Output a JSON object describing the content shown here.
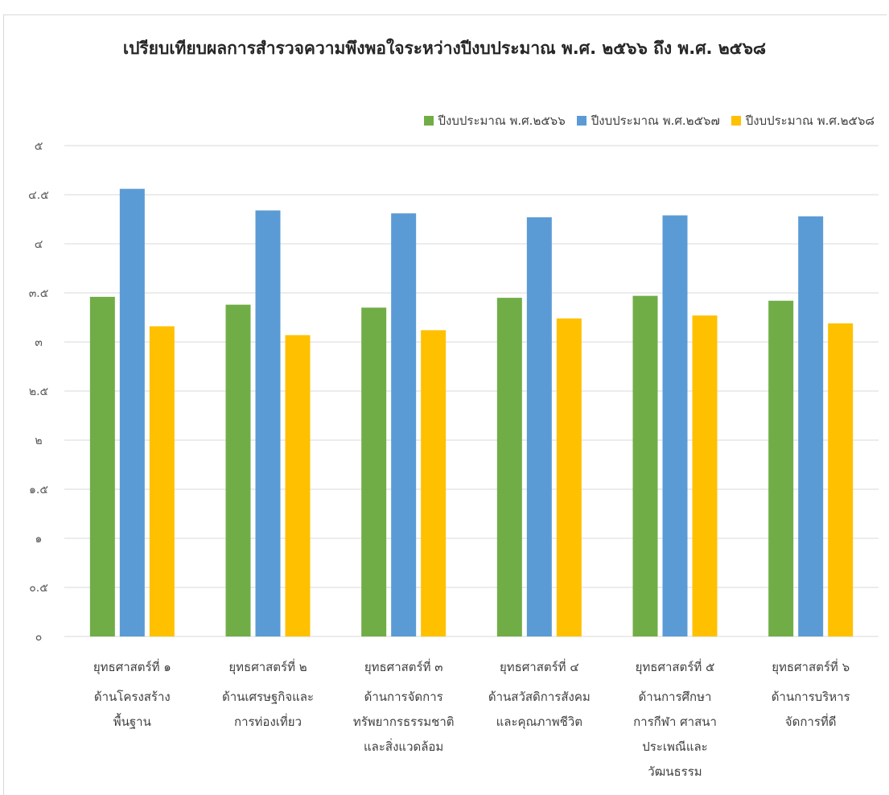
{
  "colors": {
    "series": [
      "#70ad47",
      "#5b9bd5",
      "#ffc000"
    ],
    "grid": "#d9d9d9"
  },
  "chart_data": {
    "type": "bar",
    "title": "เปรียบเทียบผลการสำรวจความพึงพอใจระหว่างปีงบประมาณ พ.ศ. ๒๕๖๖ ถึง พ.ศ. ๒๕๖๘",
    "xlabel": "",
    "ylabel": "",
    "ylim": [
      0,
      5
    ],
    "yticks": [
      0,
      0.5,
      1,
      1.5,
      2,
      2.5,
      3,
      3.5,
      4,
      4.5,
      5
    ],
    "ytick_labels": [
      "๐",
      "๐.๕",
      "๑",
      "๑.๕",
      "๒",
      "๒.๕",
      "๓",
      "๓.๕",
      "๔",
      "๔.๕",
      "๕"
    ],
    "grid": true,
    "legend": "top-right",
    "categories": [
      [
        "ยุทธศาสตร์ที่ ๑",
        "ด้านโครงสร้าง",
        "พื้นฐาน"
      ],
      [
        "ยุทธศาสตร์ที่ ๒",
        "ด้านเศรษฐกิจและ",
        "การท่องเที่ยว"
      ],
      [
        "ยุทธศาสตร์ที่ ๓",
        "ด้านการจัดการ",
        "ทรัพยากรธรรมชาติ",
        "และสิ่งแวดล้อม"
      ],
      [
        "ยุทธศาสตร์ที่ ๔",
        "ด้านสวัสดิการสังคม",
        "และคุณภาพชีวิต"
      ],
      [
        "ยุทธศาสตร์ที่ ๕",
        "ด้านการศึกษา",
        "การกีฬา ศาสนา",
        "ประเพณีและ",
        "วัฒนธรรม"
      ],
      [
        "ยุทธศาสตร์ที่ ๖",
        "ด้านการบริหาร",
        "จัดการที่ดี"
      ]
    ],
    "series": [
      {
        "name": "ปีงบประมาณ พ.ศ.๒๕๖๖",
        "values": [
          3.46,
          3.38,
          3.35,
          3.45,
          3.47,
          3.42
        ]
      },
      {
        "name": "ปีงบประมาณ พ.ศ.๒๕๖๗",
        "values": [
          4.56,
          4.34,
          4.31,
          4.27,
          4.29,
          4.28
        ]
      },
      {
        "name": "ปีงบประมาณ พ.ศ.๒๕๖๘",
        "values": [
          3.16,
          3.07,
          3.12,
          3.24,
          3.27,
          3.19
        ]
      }
    ]
  }
}
